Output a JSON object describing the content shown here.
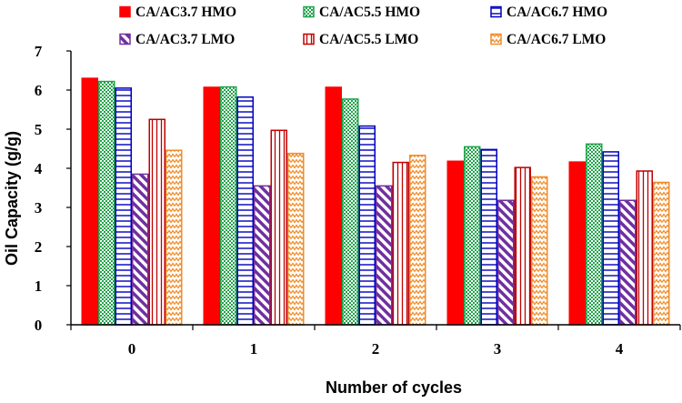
{
  "chart_data": {
    "type": "bar",
    "categories": [
      "0",
      "1",
      "2",
      "3",
      "4"
    ],
    "xlabel": "Number of cycles",
    "ylabel": "Oil Capacity (g/g)",
    "ylim": [
      0,
      7
    ],
    "yticks": [
      "0",
      "1",
      "2",
      "3",
      "4",
      "5",
      "6",
      "7"
    ],
    "grid": false,
    "legend_position": "top",
    "series": [
      {
        "name": "CA/AC3.7 HMO",
        "values": [
          6.3,
          6.07,
          6.07,
          4.18,
          4.16
        ],
        "color": "#ff0000",
        "pattern": "solid"
      },
      {
        "name": "CA/AC5.5 HMO",
        "values": [
          6.22,
          6.08,
          5.77,
          4.55,
          4.62
        ],
        "color": "#1fa34a",
        "pattern": "checker"
      },
      {
        "name": "CA/AC6.7 HMO",
        "values": [
          6.05,
          5.82,
          5.08,
          4.48,
          4.42
        ],
        "color": "#0000c0",
        "pattern": "hlines"
      },
      {
        "name": "CA/AC3.7 LMO",
        "values": [
          3.85,
          3.55,
          3.55,
          3.18,
          3.18
        ],
        "color": "#7030a0",
        "pattern": "diagonal"
      },
      {
        "name": "CA/AC5.5 LMO",
        "values": [
          5.25,
          4.97,
          4.15,
          4.02,
          3.93
        ],
        "color": "#c00000",
        "pattern": "vlines"
      },
      {
        "name": "CA/AC6.7 LMO",
        "values": [
          4.46,
          4.38,
          4.33,
          3.78,
          3.64
        ],
        "color": "#f08c28",
        "pattern": "zigzag"
      }
    ]
  }
}
